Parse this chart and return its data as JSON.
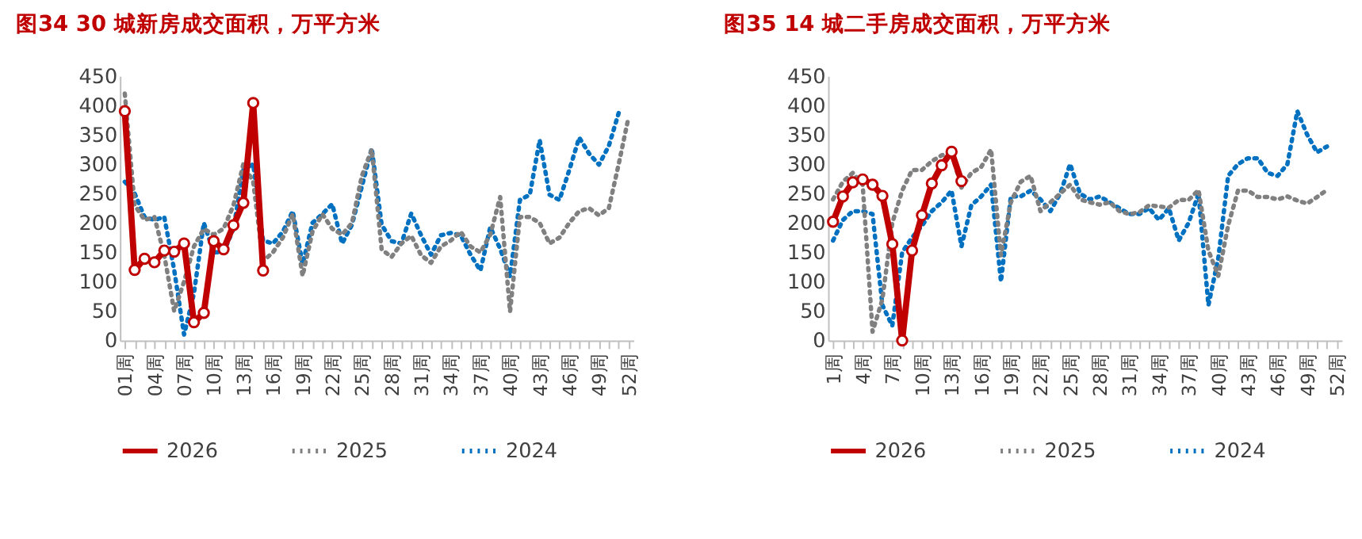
{
  "chart_data": [
    {
      "type": "line",
      "title": "图34  30 城新房成交面积，万平方米",
      "categories": [
        "01周",
        null,
        null,
        "04周",
        null,
        null,
        "07周",
        null,
        null,
        "10周",
        null,
        null,
        "13周",
        null,
        null,
        "16周",
        null,
        null,
        "19周",
        null,
        null,
        "22周",
        null,
        null,
        "25周",
        null,
        null,
        "28周",
        null,
        null,
        "31周",
        null,
        null,
        "34周",
        null,
        null,
        "37周",
        null,
        null,
        "40周",
        null,
        null,
        "43周",
        null,
        null,
        "46周",
        null,
        null,
        "49周",
        null,
        null,
        "52周"
      ],
      "ylim": [
        0,
        450
      ],
      "yticks": [
        0,
        50,
        100,
        150,
        200,
        250,
        300,
        350,
        400,
        450
      ],
      "grid": false,
      "legend": "bottom",
      "series": [
        {
          "name": "2026",
          "color": "#c00000",
          "marker": "circle",
          "line_style": "solid",
          "values": [
            390,
            120,
            139,
            133,
            153,
            151,
            165,
            31,
            47,
            169,
            155,
            196,
            234,
            404,
            119,
            null,
            null,
            null,
            null,
            null,
            null,
            null,
            null,
            null,
            null,
            null,
            null,
            null,
            null,
            null,
            null,
            null,
            null,
            null,
            null,
            null,
            null,
            null,
            null,
            null,
            null,
            null,
            null,
            null,
            null,
            null,
            null,
            null,
            null,
            null,
            null,
            null
          ]
        },
        {
          "name": "2025",
          "color": "#808080",
          "marker": "none",
          "line_style": "dotted",
          "values": [
            420,
            230,
            205,
            210,
            145,
            50,
            100,
            160,
            190,
            180,
            190,
            230,
            300,
            270,
            135,
            150,
            175,
            215,
            110,
            185,
            215,
            190,
            180,
            200,
            280,
            325,
            155,
            142,
            165,
            178,
            145,
            132,
            160,
            170,
            185,
            160,
            150,
            180,
            244,
            49,
            210,
            210,
            200,
            165,
            175,
            200,
            220,
            225,
            213,
            225,
            300,
            380
          ]
        },
        {
          "name": "2024",
          "color": "#0070c0",
          "marker": "none",
          "line_style": "dotted",
          "values": [
            270,
            250,
            210,
            205,
            210,
            120,
            10,
            80,
            200,
            150,
            150,
            190,
            290,
            300,
            170,
            165,
            185,
            220,
            130,
            200,
            215,
            232,
            165,
            197,
            262,
            327,
            197,
            169,
            165,
            216,
            179,
            146,
            179,
            183,
            179,
            146,
            119,
            193,
            156,
            109,
            239,
            248,
            341,
            248,
            239,
            290,
            345,
            318,
            299,
            331,
            387,
            null
          ]
        }
      ]
    },
    {
      "type": "line",
      "title": "图35  14 城二手房成交面积，万平方米",
      "categories": [
        "1周",
        null,
        null,
        "4周",
        null,
        null,
        "7周",
        null,
        null,
        "10周",
        null,
        null,
        "13周",
        null,
        null,
        "16周",
        null,
        null,
        "19周",
        null,
        null,
        "22周",
        null,
        null,
        "25周",
        null,
        null,
        "28周",
        null,
        null,
        "31周",
        null,
        null,
        "34周",
        null,
        null,
        "37周",
        null,
        null,
        "40周",
        null,
        null,
        "43周",
        null,
        null,
        "46周",
        null,
        null,
        "49周",
        null,
        null,
        "52周"
      ],
      "ylim": [
        0,
        450
      ],
      "yticks": [
        0,
        50,
        100,
        150,
        200,
        250,
        300,
        350,
        400,
        450
      ],
      "grid": false,
      "legend": "bottom",
      "series": [
        {
          "name": "2026",
          "color": "#c00000",
          "marker": "circle",
          "line_style": "solid",
          "values": [
            202,
            245,
            269,
            274,
            265,
            246,
            164,
            0,
            153,
            213,
            267,
            298,
            321,
            271,
            null,
            null,
            null,
            null,
            null,
            null,
            null,
            null,
            null,
            null,
            null,
            null,
            null,
            null,
            null,
            null,
            null,
            null,
            null,
            null,
            null,
            null,
            null,
            null,
            null,
            null,
            null,
            null,
            null,
            null,
            null,
            null,
            null,
            null,
            null,
            null,
            null,
            null
          ]
        },
        {
          "name": "2025",
          "color": "#808080",
          "marker": "none",
          "line_style": "dotted",
          "values": [
            240,
            270,
            285,
            265,
            15,
            70,
            200,
            255,
            290,
            290,
            305,
            315,
            320,
            260,
            285,
            295,
            325,
            145,
            235,
            270,
            280,
            220,
            235,
            250,
            265,
            240,
            235,
            231,
            235,
            220,
            215,
            218,
            230,
            228,
            226,
            239,
            239,
            256,
            153,
            110,
            196,
            255,
            255,
            244,
            244,
            240,
            245,
            238,
            233,
            244,
            256,
            null
          ]
        },
        {
          "name": "2024",
          "color": "#0070c0",
          "marker": "none",
          "line_style": "dotted",
          "values": [
            170,
            205,
            220,
            220,
            215,
            60,
            25,
            150,
            175,
            195,
            220,
            235,
            255,
            160,
            230,
            245,
            265,
            100,
            245,
            245,
            255,
            240,
            220,
            250,
            300,
            250,
            240,
            245,
            235,
            225,
            215,
            215,
            225,
            205,
            225,
            170,
            200,
            250,
            60,
            140,
            280,
            300,
            310,
            310,
            285,
            280,
            300,
            390,
            350,
            320,
            330,
            null
          ]
        }
      ]
    }
  ]
}
